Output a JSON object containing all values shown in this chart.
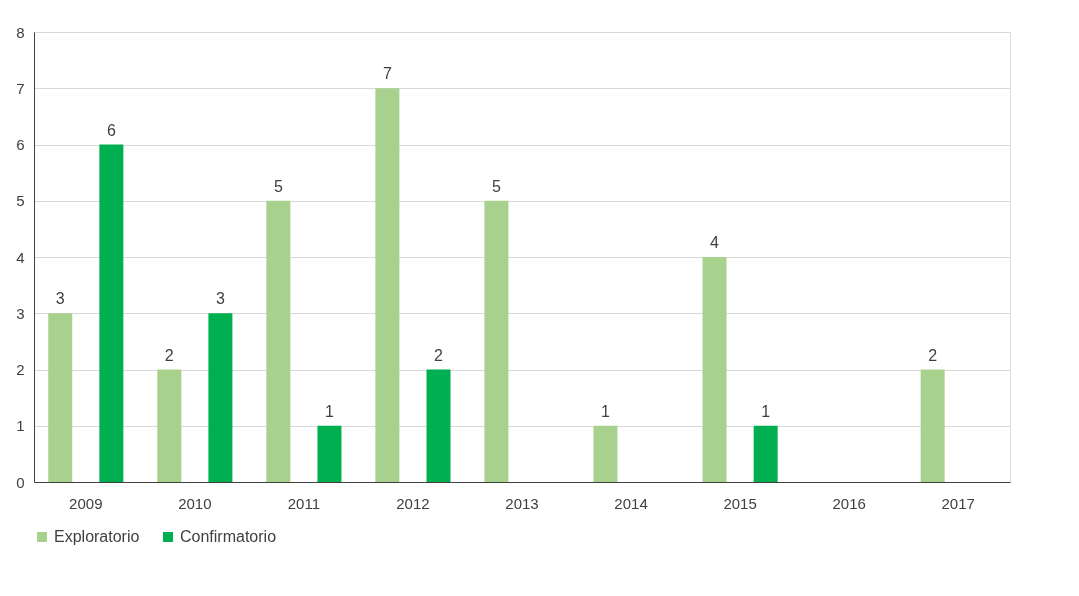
{
  "chart_data": {
    "type": "bar",
    "categories": [
      "2009",
      "2010",
      "2011",
      "2012",
      "2013",
      "2014",
      "2015",
      "2016",
      "2017"
    ],
    "series": [
      {
        "name": "Exploratorio",
        "color": "#a9d18e",
        "values": [
          3,
          2,
          5,
          7,
          5,
          1,
          4,
          null,
          2
        ]
      },
      {
        "name": "Confirmatorio",
        "color": "#00b050",
        "values": [
          6,
          3,
          1,
          2,
          null,
          null,
          1,
          null,
          null
        ]
      }
    ],
    "ylim": [
      0,
      8
    ],
    "yticks": [
      0,
      1,
      2,
      3,
      4,
      5,
      6,
      7,
      8
    ],
    "grid": "y",
    "legend": "bottom",
    "data_labels": true
  }
}
